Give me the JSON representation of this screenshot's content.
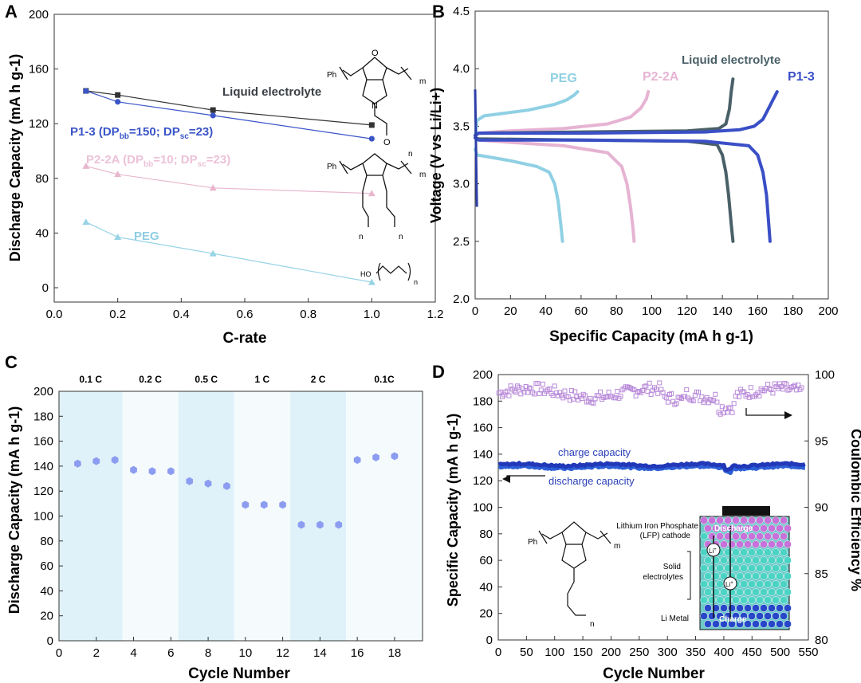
{
  "figure": {
    "panel_labels": [
      "A",
      "B",
      "C",
      "D"
    ]
  },
  "chart_data": [
    {
      "type": "line",
      "title": "",
      "xlabel": "C-rate",
      "ylabel": "Discharge Capacity (mA h g-1)",
      "xlim": [
        0.0,
        1.2
      ],
      "ylim": [
        0,
        200
      ],
      "xticks": [
        "0.0",
        "0.2",
        "0.4",
        "0.6",
        "0.8",
        "1.0",
        "1.2"
      ],
      "yticks": [
        "0",
        "40",
        "80",
        "120",
        "160",
        "200"
      ],
      "series": [
        {
          "name": "Liquid electrolyte",
          "color": "#333333",
          "x": [
            0.1,
            0.2,
            0.5,
            1.0
          ],
          "y": [
            144,
            141,
            130,
            119
          ]
        },
        {
          "name": "P1-3",
          "label": "P1-3 (DP",
          "color": "#3b55c8",
          "x": [
            0.1,
            0.2,
            0.5,
            1.0
          ],
          "y": [
            144,
            136,
            126,
            109
          ]
        },
        {
          "name": "P2-2A",
          "label": "P2-2A (DP",
          "color": "#e8b7cf",
          "x": [
            0.1,
            0.2,
            0.5,
            1.0
          ],
          "y": [
            89,
            83,
            73,
            69
          ]
        },
        {
          "name": "PEG",
          "color": "#98d3e6",
          "x": [
            0.1,
            0.2,
            0.5,
            1.0
          ],
          "y": [
            48,
            37,
            25,
            4
          ]
        }
      ],
      "label_subscripts": [
        "bb",
        "sc"
      ],
      "label_parts": {
        "eq1": "=150; DP",
        "eq1b": "=10; DP",
        "eq2": "=23)"
      },
      "structure_labels": {
        "ph": "Ph",
        "m": "m",
        "n": "n",
        "o": "O",
        "n_atom": "N",
        "ho": "HO"
      }
    },
    {
      "type": "line",
      "xlabel": "Specific Capacity (mA h g-1)",
      "ylabel": "Voltage (V vs Li/Li+)",
      "xlim": [
        0,
        200
      ],
      "ylim": [
        2.0,
        4.5
      ],
      "xticks": [
        "0",
        "20",
        "40",
        "60",
        "80",
        "100",
        "120",
        "140",
        "160",
        "180",
        "200"
      ],
      "yticks": [
        "2.0",
        "2.5",
        "3.0",
        "3.5",
        "4.0",
        "4.5"
      ],
      "series": [
        {
          "name": "PEG",
          "color": "#8fd0e4",
          "charge": {
            "x": [
              0,
              1,
              5,
              15,
              30,
              45,
              52,
              56,
              58
            ],
            "y": [
              3.4,
              3.55,
              3.59,
              3.61,
              3.64,
              3.69,
              3.73,
              3.77,
              3.8
            ]
          },
          "discharge": {
            "x": [
              0,
              1,
              5,
              20,
              35,
              42,
              45,
              47,
              48.5,
              49.5
            ],
            "y": [
              3.3,
              3.25,
              3.24,
              3.2,
              3.15,
              3.1,
              3.0,
              2.85,
              2.65,
              2.5
            ]
          }
        },
        {
          "name": "P2-2A",
          "color": "#e6b3d3",
          "charge": {
            "x": [
              0,
              2,
              20,
              50,
              75,
              88,
              94,
              97,
              98
            ],
            "y": [
              3.42,
              3.44,
              3.46,
              3.48,
              3.52,
              3.58,
              3.66,
              3.74,
              3.8
            ]
          },
          "discharge": {
            "x": [
              0,
              2,
              20,
              50,
              75,
              83,
              86,
              88,
              89.5,
              90
            ],
            "y": [
              3.4,
              3.38,
              3.36,
              3.33,
              3.27,
              3.15,
              3.0,
              2.8,
              2.6,
              2.5
            ]
          }
        },
        {
          "name": "Liquid electrolyte",
          "color": "#4a6068",
          "charge": {
            "x": [
              0,
              2,
              60,
              120,
              138,
              142,
              144,
              145,
              146
            ],
            "y": [
              3.42,
              3.44,
              3.45,
              3.46,
              3.48,
              3.52,
              3.65,
              3.8,
              3.91
            ]
          },
          "discharge": {
            "x": [
              0,
              2,
              60,
              120,
              137,
              140,
              142,
              143.5,
              145,
              146
            ],
            "y": [
              3.4,
              3.39,
              3.38,
              3.37,
              3.34,
              3.25,
              3.1,
              2.9,
              2.65,
              2.5
            ]
          }
        },
        {
          "name": "P1-3",
          "color": "#3a4fc6",
          "charge": {
            "x": [
              0,
              2,
              60,
              130,
              150,
              158,
              163,
              167,
              171
            ],
            "y": [
              3.42,
              3.44,
              3.44,
              3.45,
              3.47,
              3.5,
              3.56,
              3.68,
              3.8
            ]
          },
          "discharge": {
            "x": [
              0,
              2,
              60,
              130,
              155,
              160,
              163,
              165,
              166,
              167
            ],
            "y": [
              3.4,
              3.38,
              3.38,
              3.37,
              3.33,
              3.25,
              3.1,
              2.9,
              2.7,
              2.5
            ]
          }
        }
      ],
      "initial_spike": {
        "x": [
          0,
          0.3,
          0.6,
          1.0
        ],
        "y": [
          3.82,
          3.5,
          3.2,
          2.8
        ]
      }
    },
    {
      "type": "scatter",
      "xlabel": "Cycle Number",
      "ylabel": "Discharge Capacity (mA h g-1)",
      "xlim": [
        0,
        19.5
      ],
      "ylim": [
        0,
        200
      ],
      "xticks": [
        "0",
        "2",
        "4",
        "6",
        "8",
        "10",
        "12",
        "14",
        "16",
        "18"
      ],
      "yticks": [
        "0",
        "20",
        "40",
        "60",
        "80",
        "100",
        "120",
        "140",
        "160",
        "180",
        "200"
      ],
      "rate_bands": [
        {
          "label": "0.1 C",
          "x0": 0,
          "x1": 3.4,
          "color": "#dff2f9"
        },
        {
          "label": "0.2 C",
          "x0": 3.4,
          "x1": 6.4,
          "color": "#f5fbfd"
        },
        {
          "label": "0.5 C",
          "x0": 6.4,
          "x1": 9.4,
          "color": "#dff2f9"
        },
        {
          "label": "1 C",
          "x0": 9.4,
          "x1": 12.4,
          "color": "#f5fbfd"
        },
        {
          "label": "2 C",
          "x0": 12.4,
          "x1": 15.4,
          "color": "#dff2f9"
        },
        {
          "label": "0.1C",
          "x0": 15.4,
          "x1": 19.5,
          "color": "#f5fbfd"
        }
      ],
      "x": [
        1,
        2,
        3,
        4,
        5,
        6,
        7,
        8,
        9,
        10,
        11,
        12,
        13,
        14,
        15,
        16,
        17,
        18
      ],
      "y": [
        142,
        144,
        145,
        137,
        136,
        136,
        128,
        126,
        124,
        109,
        109,
        109,
        93,
        93,
        93,
        145,
        147,
        148
      ],
      "marker_color": "#8c9cf0"
    },
    {
      "type": "scatter",
      "xlabel": "Cycle Number",
      "ylabel": "Specific Capacity (mA h g-1)",
      "y2label": "Coulombic Efficiency %",
      "xlim": [
        0,
        550
      ],
      "ylim": [
        0,
        200
      ],
      "y2lim": [
        80,
        100
      ],
      "xticks": [
        "0",
        "50",
        "100",
        "150",
        "200",
        "250",
        "300",
        "350",
        "400",
        "450",
        "500",
        "550"
      ],
      "yticks": [
        "0",
        "20",
        "40",
        "60",
        "80",
        "100",
        "120",
        "140",
        "160",
        "180",
        "200"
      ],
      "y2ticks": [
        "80",
        "85",
        "90",
        "95",
        "100"
      ],
      "annotations": {
        "charge": "charge capacity",
        "discharge": "discharge capacity"
      },
      "charge_color": "#2138b8",
      "discharge_color": "#2d5fd6",
      "ce_color": "#b98ad9",
      "charge_mean": 132,
      "discharge_mean": 130,
      "ce_mean": 98.6,
      "inset": {
        "labels": [
          "Lithium Iron Phosphate",
          "(LFP) cathode",
          "Solid",
          "electrolytes",
          "Li Metal",
          "Discharge",
          "Charge",
          "Li",
          "Li",
          "+"
        ],
        "structure_labels": {
          "ph": "Ph",
          "m": "m",
          "n": "n"
        }
      }
    }
  ]
}
